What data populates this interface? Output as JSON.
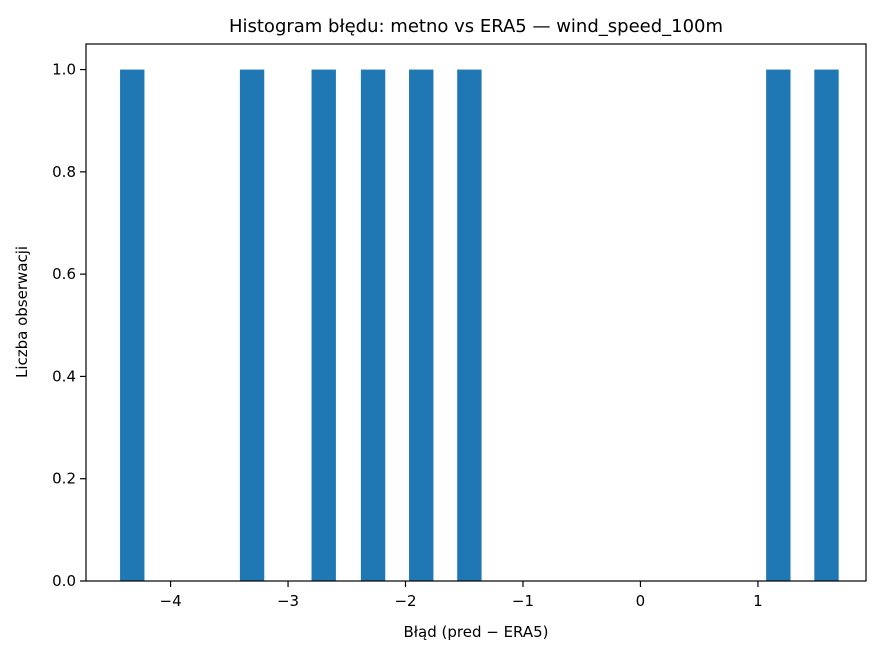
{
  "chart_data": {
    "type": "bar",
    "title": "Histogram błędu: metno vs ERA5 — wind_speed_100m",
    "xlabel": "Błąd (pred − ERA5)",
    "ylabel": "Liczba obserwacji",
    "bar_color": "#1f77b4",
    "bin_width": 0.2075,
    "xlim": [
      -4.72,
      1.92
    ],
    "ylim": [
      0,
      1.05
    ],
    "bars": [
      {
        "x_left": -4.43,
        "value": 1
      },
      {
        "x_left": -3.41,
        "value": 1
      },
      {
        "x_left": -2.8,
        "value": 1
      },
      {
        "x_left": -2.38,
        "value": 1
      },
      {
        "x_left": -1.97,
        "value": 1
      },
      {
        "x_left": -1.56,
        "value": 1
      },
      {
        "x_left": 1.07,
        "value": 1
      },
      {
        "x_left": 1.48,
        "value": 1
      }
    ],
    "xticks": [
      {
        "value": -4,
        "label": "−4"
      },
      {
        "value": -3,
        "label": "−3"
      },
      {
        "value": -2,
        "label": "−2"
      },
      {
        "value": -1,
        "label": "−1"
      },
      {
        "value": 0,
        "label": "0"
      },
      {
        "value": 1,
        "label": "1"
      }
    ],
    "yticks": [
      {
        "value": 0,
        "label": "0.0"
      },
      {
        "value": 0.2,
        "label": "0.2"
      },
      {
        "value": 0.4,
        "label": "0.4"
      },
      {
        "value": 0.6,
        "label": "0.6"
      },
      {
        "value": 0.8,
        "label": "0.8"
      },
      {
        "value": 1.0,
        "label": "1.0"
      }
    ],
    "grid": false,
    "legend": "none"
  }
}
